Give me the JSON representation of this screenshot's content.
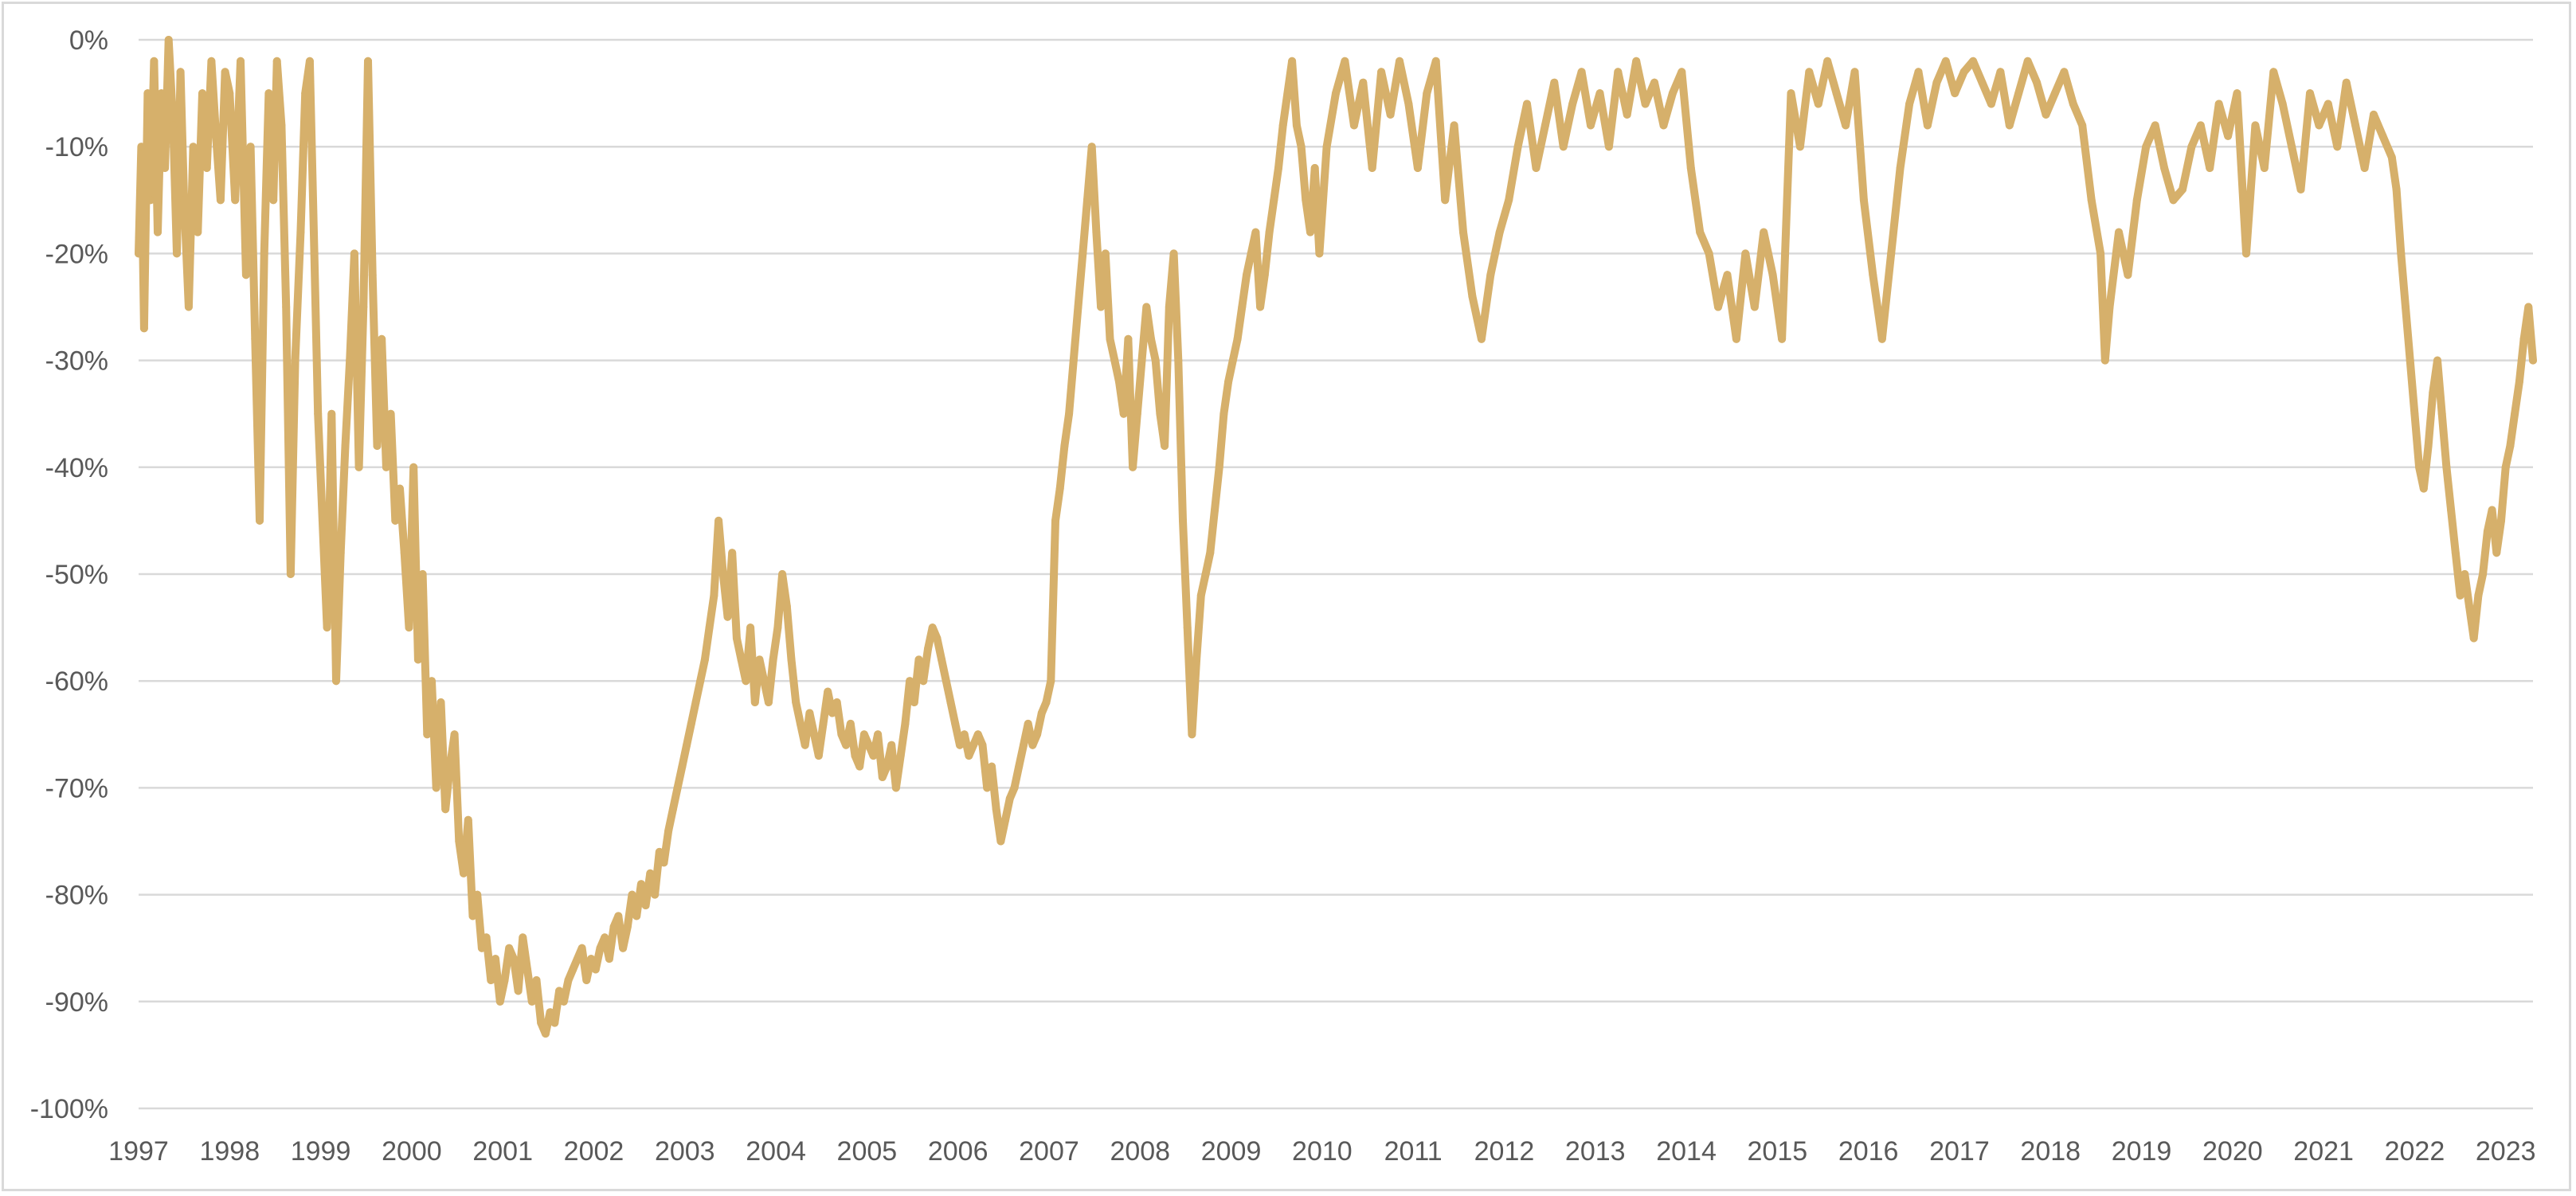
{
  "chart_data": {
    "type": "line",
    "title": "",
    "xlabel": "",
    "ylabel": "",
    "x_ticks": [
      "1997",
      "1998",
      "1999",
      "2000",
      "2001",
      "2002",
      "2003",
      "2004",
      "2005",
      "2006",
      "2007",
      "2008",
      "2009",
      "2010",
      "2011",
      "2012",
      "2013",
      "2014",
      "2015",
      "2016",
      "2017",
      "2018",
      "2019",
      "2020",
      "2021",
      "2022",
      "2023"
    ],
    "y_ticks": [
      "0%",
      "-10%",
      "-20%",
      "-30%",
      "-40%",
      "-50%",
      "-60%",
      "-70%",
      "-80%",
      "-90%",
      "-100%"
    ],
    "xlim": [
      1997.0,
      2023.3
    ],
    "ylim": [
      -100,
      0
    ],
    "grid": true,
    "legend": "none",
    "series": [
      {
        "color": "#d6b06b",
        "x": [
          1997.0,
          1997.03,
          1997.06,
          1997.1,
          1997.13,
          1997.17,
          1997.21,
          1997.25,
          1997.29,
          1997.33,
          1997.38,
          1997.42,
          1997.46,
          1997.5,
          1997.55,
          1997.6,
          1997.65,
          1997.7,
          1997.75,
          1997.8,
          1997.85,
          1997.9,
          1997.95,
          1998.0,
          1998.06,
          1998.12,
          1998.18,
          1998.23,
          1998.28,
          1998.33,
          1998.38,
          1998.43,
          1998.48,
          1998.52,
          1998.57,
          1998.62,
          1998.67,
          1998.72,
          1998.78,
          1998.83,
          1998.88,
          1998.93,
          1998.97,
          1999.02,
          1999.07,
          1999.12,
          1999.17,
          1999.22,
          1999.27,
          1999.32,
          1999.37,
          1999.42,
          1999.47,
          1999.52,
          1999.57,
          1999.62,
          1999.67,
          1999.72,
          1999.77,
          1999.82,
          1999.87,
          1999.92,
          1999.97,
          2000.02,
          2000.07,
          2000.12,
          2000.17,
          2000.22,
          2000.27,
          2000.32,
          2000.37,
          2000.42,
          2000.47,
          2000.52,
          2000.57,
          2000.62,
          2000.67,
          2000.72,
          2000.77,
          2000.82,
          2000.87,
          2000.92,
          2000.97,
          2001.02,
          2001.07,
          2001.12,
          2001.17,
          2001.22,
          2001.27,
          2001.32,
          2001.37,
          2001.42,
          2001.47,
          2001.52,
          2001.57,
          2001.62,
          2001.67,
          2001.72,
          2001.77,
          2001.82,
          2001.87,
          2001.92,
          2001.97,
          2002.02,
          2002.07,
          2002.12,
          2002.17,
          2002.22,
          2002.27,
          2002.32,
          2002.37,
          2002.42,
          2002.47,
          2002.52,
          2002.57,
          2002.62,
          2002.67,
          2002.72,
          2002.77,
          2002.82,
          2002.87,
          2002.92,
          2002.97,
          2003.02,
          2003.07,
          2003.12,
          2003.17,
          2003.22,
          2003.27,
          2003.32,
          2003.37,
          2003.42,
          2003.47,
          2003.52,
          2003.57,
          2003.62,
          2003.67,
          2003.72,
          2003.77,
          2003.82,
          2003.87,
          2003.92,
          2003.97,
          2004.02,
          2004.07,
          2004.12,
          2004.17,
          2004.22,
          2004.27,
          2004.32,
          2004.37,
          2004.42,
          2004.47,
          2004.52,
          2004.57,
          2004.62,
          2004.67,
          2004.72,
          2004.77,
          2004.82,
          2004.87,
          2004.92,
          2004.97,
          2005.02,
          2005.07,
          2005.12,
          2005.17,
          2005.22,
          2005.27,
          2005.32,
          2005.37,
          2005.42,
          2005.47,
          2005.52,
          2005.57,
          2005.62,
          2005.67,
          2005.72,
          2005.77,
          2005.82,
          2005.87,
          2005.92,
          2005.97,
          2006.02,
          2006.07,
          2006.12,
          2006.17,
          2006.22,
          2006.27,
          2006.32,
          2006.37,
          2006.42,
          2006.47,
          2006.52,
          2006.57,
          2006.62,
          2006.67,
          2006.72,
          2006.77,
          2006.82,
          2006.87,
          2006.92,
          2006.97,
          2007.02,
          2007.07,
          2007.12,
          2007.17,
          2007.22,
          2007.27,
          2007.32,
          2007.37,
          2007.42,
          2007.47,
          2007.52,
          2007.57,
          2007.62,
          2007.67,
          2007.72,
          2007.77,
          2007.82,
          2007.87,
          2007.92,
          2007.97,
          2008.02,
          2008.07,
          2008.12,
          2008.17,
          2008.22,
          2008.27,
          2008.32,
          2008.37,
          2008.42,
          2008.47,
          2008.52,
          2008.57,
          2008.62,
          2008.67,
          2008.72,
          2008.77,
          2008.82,
          2008.87,
          2008.92,
          2008.97,
          2009.02,
          2009.07,
          2009.12,
          2009.17,
          2009.22,
          2009.27,
          2009.32,
          2009.37,
          2009.42,
          2009.47,
          2009.52,
          2009.57,
          2009.62,
          2009.67,
          2009.72,
          2009.77,
          2009.82,
          2009.87,
          2009.92,
          2009.97,
          2010.05,
          2010.15,
          2010.25,
          2010.35,
          2010.45,
          2010.55,
          2010.65,
          2010.75,
          2010.85,
          2010.95,
          2011.05,
          2011.15,
          2011.25,
          2011.35,
          2011.45,
          2011.55,
          2011.65,
          2011.75,
          2011.85,
          2011.95,
          2012.05,
          2012.15,
          2012.25,
          2012.35,
          2012.45,
          2012.55,
          2012.65,
          2012.75,
          2012.85,
          2012.95,
          2013.05,
          2013.15,
          2013.25,
          2013.35,
          2013.45,
          2013.55,
          2013.65,
          2013.75,
          2013.85,
          2013.95,
          2014.05,
          2014.15,
          2014.25,
          2014.35,
          2014.45,
          2014.55,
          2014.65,
          2014.75,
          2014.85,
          2014.95,
          2015.05,
          2015.15,
          2015.25,
          2015.35,
          2015.45,
          2015.55,
          2015.65,
          2015.75,
          2015.85,
          2015.95,
          2016.05,
          2016.15,
          2016.25,
          2016.35,
          2016.45,
          2016.55,
          2016.65,
          2016.75,
          2016.85,
          2016.95,
          2017.05,
          2017.15,
          2017.25,
          2017.35,
          2017.45,
          2017.55,
          2017.65,
          2017.75,
          2017.85,
          2017.95,
          2018.05,
          2018.15,
          2018.25,
          2018.35,
          2018.45,
          2018.55,
          2018.6,
          2018.65,
          2018.75,
          2018.85,
          2018.95,
          2019.05,
          2019.15,
          2019.25,
          2019.35,
          2019.45,
          2019.55,
          2019.65,
          2019.75,
          2019.85,
          2019.95,
          2020.05,
          2020.15,
          2020.25,
          2020.35,
          2020.45,
          2020.55,
          2020.65,
          2020.75,
          2020.85,
          2020.95,
          2021.05,
          2021.15,
          2021.25,
          2021.35,
          2021.45,
          2021.55,
          2021.65,
          2021.75,
          2021.8,
          2021.85,
          2021.9,
          2021.95,
          2022.0,
          2022.05,
          2022.1,
          2022.15,
          2022.2,
          2022.25,
          2022.3,
          2022.35,
          2022.4,
          2022.45,
          2022.5,
          2022.55,
          2022.6,
          2022.65,
          2022.7,
          2022.75,
          2022.8,
          2022.85,
          2022.9,
          2022.95,
          2023.0,
          2023.05,
          2023.1,
          2023.15,
          2023.2,
          2023.25,
          2023.3
        ],
        "y": [
          -20,
          -10,
          -27,
          -5,
          -15,
          -2,
          -18,
          -5,
          -12,
          0,
          -8,
          -20,
          -3,
          -15,
          -25,
          -10,
          -18,
          -5,
          -12,
          -2,
          -9,
          -15,
          -3,
          -5,
          -15,
          -2,
          -22,
          -10,
          -28,
          -45,
          -20,
          -5,
          -15,
          -2,
          -8,
          -25,
          -50,
          -30,
          -18,
          -5,
          -2,
          -20,
          -35,
          -45,
          -55,
          -35,
          -60,
          -48,
          -38,
          -30,
          -20,
          -40,
          -25,
          -2,
          -22,
          -38,
          -28,
          -40,
          -35,
          -45,
          -42,
          -48,
          -55,
          -40,
          -58,
          -50,
          -65,
          -60,
          -70,
          -62,
          -72,
          -68,
          -65,
          -75,
          -78,
          -73,
          -82,
          -80,
          -85,
          -84,
          -88,
          -86,
          -90,
          -88,
          -85,
          -86,
          -89,
          -84,
          -87,
          -90,
          -88,
          -92,
          -93,
          -91,
          -92,
          -89,
          -90,
          -88,
          -87,
          -86,
          -85,
          -88,
          -86,
          -87,
          -85,
          -84,
          -86,
          -83,
          -82,
          -85,
          -83,
          -80,
          -82,
          -79,
          -81,
          -78,
          -80,
          -76,
          -77,
          -74,
          -72,
          -70,
          -68,
          -66,
          -64,
          -62,
          -60,
          -58,
          -55,
          -52,
          -45,
          -50,
          -54,
          -48,
          -56,
          -58,
          -60,
          -55,
          -62,
          -58,
          -60,
          -62,
          -58,
          -55,
          -50,
          -53,
          -58,
          -62,
          -64,
          -66,
          -63,
          -65,
          -67,
          -64,
          -61,
          -63,
          -62,
          -65,
          -66,
          -64,
          -67,
          -68,
          -65,
          -66,
          -67,
          -65,
          -69,
          -68,
          -66,
          -70,
          -67,
          -64,
          -60,
          -62,
          -58,
          -60,
          -57,
          -55,
          -56,
          -58,
          -60,
          -62,
          -64,
          -66,
          -65,
          -67,
          -66,
          -65,
          -66,
          -70,
          -68,
          -72,
          -75,
          -73,
          -71,
          -70,
          -68,
          -66,
          -64,
          -66,
          -65,
          -63,
          -62,
          -60,
          -45,
          -42,
          -38,
          -35,
          -30,
          -25,
          -20,
          -15,
          -10,
          -18,
          -25,
          -20,
          -28,
          -30,
          -32,
          -35,
          -28,
          -40,
          -35,
          -30,
          -25,
          -28,
          -30,
          -35,
          -38,
          -25,
          -20,
          -30,
          -45,
          -55,
          -65,
          -58,
          -52,
          -50,
          -48,
          -44,
          -40,
          -35,
          -32,
          -30,
          -28,
          -25,
          -22,
          -20,
          -18,
          -25,
          -22,
          -18,
          -15,
          -12,
          -8,
          -5,
          -2,
          -8,
          -10,
          -15,
          -18,
          -12,
          -20,
          -10,
          -5,
          -2,
          -8,
          -4,
          -12,
          -3,
          -7,
          -2,
          -6,
          -12,
          -5,
          -2,
          -15,
          -8,
          -18,
          -24,
          -28,
          -22,
          -18,
          -15,
          -10,
          -6,
          -12,
          -8,
          -4,
          -10,
          -6,
          -3,
          -8,
          -5,
          -10,
          -3,
          -7,
          -2,
          -6,
          -4,
          -8,
          -5,
          -3,
          -12,
          -18,
          -20,
          -25,
          -22,
          -28,
          -20,
          -25,
          -18,
          -22,
          -28,
          -5,
          -10,
          -3,
          -6,
          -2,
          -5,
          -8,
          -3,
          -15,
          -22,
          -28,
          -20,
          -12,
          -6,
          -3,
          -8,
          -4,
          -2,
          -5,
          -3,
          -2,
          -4,
          -6,
          -3,
          -8,
          -5,
          -2,
          -4,
          -7,
          -5,
          -3,
          -6,
          -8,
          -15,
          -20,
          -30,
          -25,
          -18,
          -22,
          -15,
          -10,
          -8,
          -12,
          -15,
          -14,
          -10,
          -8,
          -12,
          -6,
          -9,
          -5,
          -20,
          -8,
          -12,
          -3,
          -6,
          -10,
          -14,
          -5,
          -8,
          -6,
          -10,
          -4,
          -8,
          -12,
          -7,
          -9,
          -11,
          -14,
          -20,
          -25,
          -30,
          -35,
          -40,
          -42,
          -38,
          -33,
          -30,
          -35,
          -40,
          -44,
          -48,
          -52,
          -50,
          -53,
          -56,
          -52,
          -50,
          -46,
          -44,
          -48,
          -45,
          -40,
          -38,
          -35,
          -32,
          -28,
          -25,
          -30
        ]
      }
    ]
  }
}
